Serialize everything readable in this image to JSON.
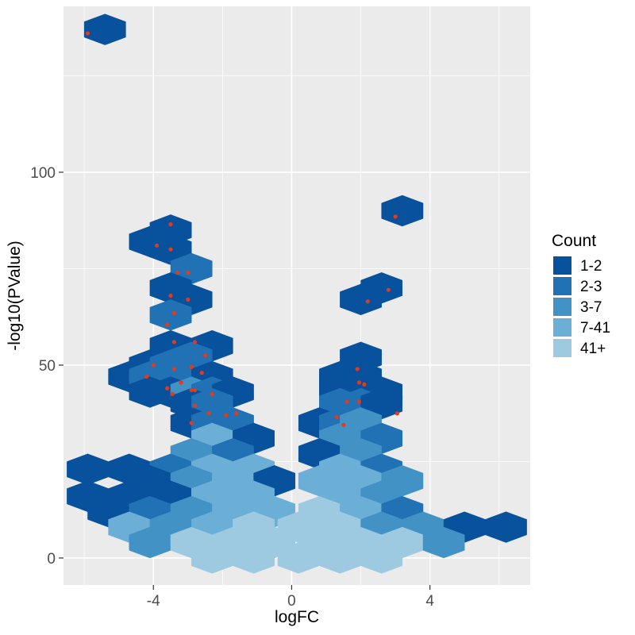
{
  "chart_data": {
    "type": "scatter",
    "subtype": "hexbin volcano plot",
    "xlabel": "logFC",
    "ylabel": "-log10(PValue)",
    "xlim": [
      -6.6,
      6.9
    ],
    "ylim": [
      -7,
      143
    ],
    "x_ticks": [
      -4,
      0,
      4
    ],
    "y_ticks": [
      0,
      50,
      100
    ],
    "grid": true,
    "panel_background": "#ebebeb",
    "grid_color": "#ffffff",
    "point_color": "#e8381a",
    "legend": {
      "title": "Count",
      "placement": "right",
      "items": [
        {
          "label": "1-2",
          "color": "#08519c"
        },
        {
          "label": "2-3",
          "color": "#2171b5"
        },
        {
          "label": "3-7",
          "color": "#4292c6"
        },
        {
          "label": "7-41",
          "color": "#6baed6"
        },
        {
          "label": "41+",
          "color": "#9ecae1"
        }
      ]
    },
    "hexbins": [
      {
        "x": -5.4,
        "y": 137,
        "count": "1-2"
      },
      {
        "x": 3.2,
        "y": 90,
        "count": "1-2"
      },
      {
        "x": -3.5,
        "y": 85,
        "count": "1-2"
      },
      {
        "x": -4.1,
        "y": 82,
        "count": "1-2"
      },
      {
        "x": -3.5,
        "y": 80,
        "count": "1-2"
      },
      {
        "x": -2.9,
        "y": 75,
        "count": "2-3"
      },
      {
        "x": -3.5,
        "y": 70,
        "count": "1-2"
      },
      {
        "x": 2.6,
        "y": 70,
        "count": "1-2"
      },
      {
        "x": -2.9,
        "y": 67,
        "count": "1-2"
      },
      {
        "x": 2.0,
        "y": 67,
        "count": "1-2"
      },
      {
        "x": -3.5,
        "y": 63,
        "count": "2-3"
      },
      {
        "x": -3.5,
        "y": 55,
        "count": "1-2"
      },
      {
        "x": -2.3,
        "y": 55,
        "count": "1-2"
      },
      {
        "x": -2.9,
        "y": 52,
        "count": "2-3"
      },
      {
        "x": 2.0,
        "y": 52,
        "count": "1-2"
      },
      {
        "x": -4.1,
        "y": 50,
        "count": "1-2"
      },
      {
        "x": -3.5,
        "y": 50,
        "count": "2-3"
      },
      {
        "x": -4.7,
        "y": 47,
        "count": "1-2"
      },
      {
        "x": -4.1,
        "y": 47,
        "count": "2-3"
      },
      {
        "x": -3.5,
        "y": 47,
        "count": "2-3"
      },
      {
        "x": -2.9,
        "y": 47,
        "count": "2-3"
      },
      {
        "x": -2.3,
        "y": 47,
        "count": "1-2"
      },
      {
        "x": 1.4,
        "y": 47,
        "count": "1-2"
      },
      {
        "x": 2.0,
        "y": 47,
        "count": "1-2"
      },
      {
        "x": -4.1,
        "y": 43,
        "count": "1-2"
      },
      {
        "x": -3.5,
        "y": 43,
        "count": "1-2"
      },
      {
        "x": -2.9,
        "y": 43,
        "count": "3-7"
      },
      {
        "x": -2.3,
        "y": 43,
        "count": "2-3"
      },
      {
        "x": -1.7,
        "y": 43,
        "count": "1-2"
      },
      {
        "x": 1.4,
        "y": 43,
        "count": "1-2"
      },
      {
        "x": 2.0,
        "y": 43,
        "count": "1-2"
      },
      {
        "x": 2.6,
        "y": 43,
        "count": "1-2"
      },
      {
        "x": -2.9,
        "y": 40,
        "count": "1-2"
      },
      {
        "x": -2.3,
        "y": 40,
        "count": "2-3"
      },
      {
        "x": 1.4,
        "y": 40,
        "count": "2-3"
      },
      {
        "x": 2.0,
        "y": 40,
        "count": "2-3"
      },
      {
        "x": 2.6,
        "y": 40,
        "count": "1-2"
      },
      {
        "x": -2.9,
        "y": 35,
        "count": "1-2"
      },
      {
        "x": -2.3,
        "y": 35,
        "count": "2-3"
      },
      {
        "x": -1.7,
        "y": 35,
        "count": "2-3"
      },
      {
        "x": 0.8,
        "y": 35,
        "count": "1-2"
      },
      {
        "x": 1.4,
        "y": 35,
        "count": "2-3"
      },
      {
        "x": 2.0,
        "y": 35,
        "count": "3-7"
      },
      {
        "x": -2.3,
        "y": 31,
        "count": "7-41"
      },
      {
        "x": -1.1,
        "y": 31,
        "count": "1-2"
      },
      {
        "x": 1.4,
        "y": 31,
        "count": "3-7"
      },
      {
        "x": 2.6,
        "y": 31,
        "count": "2-3"
      },
      {
        "x": -2.9,
        "y": 27,
        "count": "3-7"
      },
      {
        "x": -1.7,
        "y": 27,
        "count": "2-3"
      },
      {
        "x": 0.8,
        "y": 27,
        "count": "1-2"
      },
      {
        "x": 2.0,
        "y": 27,
        "count": "3-7"
      },
      {
        "x": -5.9,
        "y": 23,
        "count": "1-2"
      },
      {
        "x": -4.7,
        "y": 23,
        "count": "1-2"
      },
      {
        "x": -3.5,
        "y": 23,
        "count": "2-3"
      },
      {
        "x": -2.3,
        "y": 23,
        "count": "7-41"
      },
      {
        "x": -1.1,
        "y": 23,
        "count": "7-41"
      },
      {
        "x": 1.4,
        "y": 23,
        "count": "7-41"
      },
      {
        "x": 2.6,
        "y": 23,
        "count": "2-3"
      },
      {
        "x": -4.1,
        "y": 20,
        "count": "1-2"
      },
      {
        "x": -2.9,
        "y": 20,
        "count": "3-7"
      },
      {
        "x": -1.7,
        "y": 20,
        "count": "7-41"
      },
      {
        "x": -0.5,
        "y": 20,
        "count": "1-2"
      },
      {
        "x": 0.8,
        "y": 20,
        "count": "7-41"
      },
      {
        "x": 2.0,
        "y": 20,
        "count": "7-41"
      },
      {
        "x": 3.2,
        "y": 20,
        "count": "3-7"
      },
      {
        "x": -5.9,
        "y": 16,
        "count": "1-2"
      },
      {
        "x": -4.7,
        "y": 16,
        "count": "1-2"
      },
      {
        "x": -3.5,
        "y": 16,
        "count": "1-2"
      },
      {
        "x": -2.3,
        "y": 16,
        "count": "7-41"
      },
      {
        "x": -1.1,
        "y": 16,
        "count": "7-41"
      },
      {
        "x": 1.4,
        "y": 16,
        "count": "7-41"
      },
      {
        "x": 2.6,
        "y": 16,
        "count": "3-7"
      },
      {
        "x": -5.3,
        "y": 12,
        "count": "1-2"
      },
      {
        "x": -4.1,
        "y": 12,
        "count": "2-3"
      },
      {
        "x": -2.9,
        "y": 12,
        "count": "3-7"
      },
      {
        "x": -1.7,
        "y": 12,
        "count": "7-41"
      },
      {
        "x": -0.5,
        "y": 12,
        "count": "7-41"
      },
      {
        "x": 0.8,
        "y": 12,
        "count": "41+"
      },
      {
        "x": 2.0,
        "y": 12,
        "count": "7-41"
      },
      {
        "x": 3.2,
        "y": 12,
        "count": "2-3"
      },
      {
        "x": -4.7,
        "y": 8,
        "count": "7-41"
      },
      {
        "x": -3.5,
        "y": 8,
        "count": "3-7"
      },
      {
        "x": -2.3,
        "y": 8,
        "count": "7-41"
      },
      {
        "x": -1.1,
        "y": 8,
        "count": "41+"
      },
      {
        "x": 0.2,
        "y": 8,
        "count": "41+"
      },
      {
        "x": 1.4,
        "y": 8,
        "count": "41+"
      },
      {
        "x": 2.6,
        "y": 8,
        "count": "3-7"
      },
      {
        "x": 3.8,
        "y": 8,
        "count": "3-7"
      },
      {
        "x": 5.0,
        "y": 8,
        "count": "1-2"
      },
      {
        "x": 6.2,
        "y": 8,
        "count": "1-2"
      },
      {
        "x": -4.1,
        "y": 4,
        "count": "3-7"
      },
      {
        "x": -2.9,
        "y": 4,
        "count": "41+"
      },
      {
        "x": -1.7,
        "y": 4,
        "count": "41+"
      },
      {
        "x": -0.5,
        "y": 4,
        "count": "41+"
      },
      {
        "x": 0.8,
        "y": 4,
        "count": "41+"
      },
      {
        "x": 2.0,
        "y": 4,
        "count": "41+"
      },
      {
        "x": 3.2,
        "y": 4,
        "count": "41+"
      },
      {
        "x": 4.4,
        "y": 4,
        "count": "3-7"
      },
      {
        "x": -2.3,
        "y": 0,
        "count": "41+"
      },
      {
        "x": -1.1,
        "y": 0,
        "count": "41+"
      },
      {
        "x": 0.2,
        "y": 0,
        "count": "41+"
      },
      {
        "x": 1.4,
        "y": 0,
        "count": "41+"
      },
      {
        "x": 2.6,
        "y": 0,
        "count": "41+"
      }
    ],
    "points": [
      {
        "x": -5.9,
        "y": 136
      },
      {
        "x": 3.0,
        "y": 88.5
      },
      {
        "x": -3.5,
        "y": 86.5
      },
      {
        "x": -3.9,
        "y": 81
      },
      {
        "x": -3.5,
        "y": 80
      },
      {
        "x": -3.3,
        "y": 74
      },
      {
        "x": -3.0,
        "y": 74
      },
      {
        "x": 2.8,
        "y": 69.5
      },
      {
        "x": -3.5,
        "y": 68
      },
      {
        "x": -3.0,
        "y": 67
      },
      {
        "x": 2.2,
        "y": 66.5
      },
      {
        "x": -3.4,
        "y": 63.5
      },
      {
        "x": -3.6,
        "y": 60.5
      },
      {
        "x": -3.4,
        "y": 56
      },
      {
        "x": -2.8,
        "y": 56
      },
      {
        "x": -2.5,
        "y": 52.5
      },
      {
        "x": -4.0,
        "y": 50
      },
      {
        "x": -2.9,
        "y": 49.5
      },
      {
        "x": -3.4,
        "y": 49
      },
      {
        "x": 1.9,
        "y": 49
      },
      {
        "x": -2.6,
        "y": 48
      },
      {
        "x": -4.2,
        "y": 47
      },
      {
        "x": -3.2,
        "y": 45.5
      },
      {
        "x": 1.95,
        "y": 45.5
      },
      {
        "x": 2.1,
        "y": 45
      },
      {
        "x": -3.6,
        "y": 44
      },
      {
        "x": -2.9,
        "y": 43.5
      },
      {
        "x": -2.8,
        "y": 43.5
      },
      {
        "x": -3.45,
        "y": 42.5
      },
      {
        "x": -2.3,
        "y": 42.5
      },
      {
        "x": 1.6,
        "y": 40.5
      },
      {
        "x": 1.95,
        "y": 40.5
      },
      {
        "x": -2.8,
        "y": 39.5
      },
      {
        "x": -2.4,
        "y": 37.5
      },
      {
        "x": -1.9,
        "y": 37
      },
      {
        "x": -1.6,
        "y": 37.5
      },
      {
        "x": 3.05,
        "y": 37.5
      },
      {
        "x": 1.3,
        "y": 36.5
      },
      {
        "x": 1.5,
        "y": 34.5
      },
      {
        "x": -2.9,
        "y": 35
      }
    ]
  }
}
